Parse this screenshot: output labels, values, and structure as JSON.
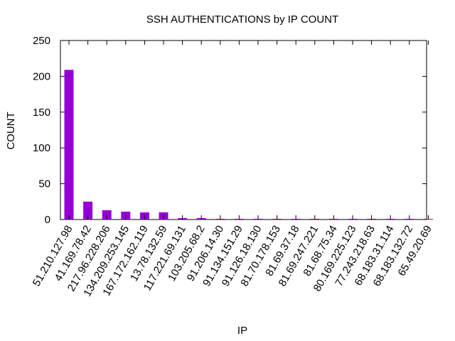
{
  "chart_data": {
    "type": "bar",
    "title": "SSH AUTHENTICATIONS by IP COUNT",
    "xlabel": "IP",
    "ylabel": "COUNT",
    "ylim": [
      0,
      250
    ],
    "yticks": [
      0,
      50,
      100,
      150,
      200,
      250
    ],
    "grid": false,
    "legend": "none",
    "bar_color": "#9400d3",
    "categories": [
      "51.210.127.98",
      "41.169.78.42",
      "217.96.228.206",
      "134.209.253.145",
      "167.172.162.119",
      "13.78.132.59",
      "117.221.69.131",
      "103.205.68.2",
      "91.206.14.30",
      "91.134.151.29",
      "91.126.18.130",
      "81.70.178.153",
      "81.69.37.18",
      "81.69.247.221",
      "81.68.75.34",
      "80.169.225.123",
      "77.243.218.63",
      "68.183.31.114",
      "68.183.132.72",
      "65.49.20.69"
    ],
    "values": [
      209,
      25,
      13,
      11,
      10,
      10,
      2,
      2,
      1,
      1,
      1,
      1,
      1,
      1,
      1,
      1,
      1,
      1,
      1,
      1
    ]
  }
}
